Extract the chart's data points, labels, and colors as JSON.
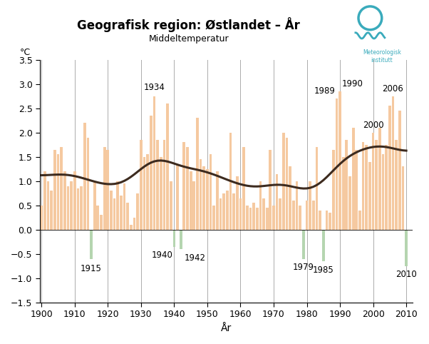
{
  "title": "Geografisk region: Østlandet – År",
  "subtitle": "Middeltemperatur",
  "xlabel": "År",
  "ylabel": "°C",
  "ylim": [
    -1.5,
    3.5
  ],
  "xlim": [
    1899.5,
    2012
  ],
  "yticks": [
    -1.5,
    -1.0,
    -0.5,
    0.0,
    0.5,
    1.0,
    1.5,
    2.0,
    2.5,
    3.0,
    3.5
  ],
  "xticks": [
    1900,
    1910,
    1920,
    1930,
    1940,
    1950,
    1960,
    1970,
    1980,
    1990,
    2000,
    2010
  ],
  "years": [
    1900,
    1901,
    1902,
    1903,
    1904,
    1905,
    1906,
    1907,
    1908,
    1909,
    1910,
    1911,
    1912,
    1913,
    1914,
    1915,
    1916,
    1917,
    1918,
    1919,
    1920,
    1921,
    1922,
    1923,
    1924,
    1925,
    1926,
    1927,
    1928,
    1929,
    1930,
    1931,
    1932,
    1933,
    1934,
    1935,
    1936,
    1937,
    1938,
    1939,
    1940,
    1941,
    1942,
    1943,
    1944,
    1945,
    1946,
    1947,
    1948,
    1949,
    1950,
    1951,
    1952,
    1953,
    1954,
    1955,
    1956,
    1957,
    1958,
    1959,
    1960,
    1961,
    1962,
    1963,
    1964,
    1965,
    1966,
    1967,
    1968,
    1969,
    1970,
    1971,
    1972,
    1973,
    1974,
    1975,
    1976,
    1977,
    1978,
    1979,
    1980,
    1981,
    1982,
    1983,
    1984,
    1985,
    1986,
    1987,
    1988,
    1989,
    1990,
    1991,
    1992,
    1993,
    1994,
    1995,
    1996,
    1997,
    1998,
    1999,
    2000,
    2001,
    2002,
    2003,
    2004,
    2005,
    2006,
    2007,
    2008,
    2009,
    2010
  ],
  "values": [
    0.5,
    1.2,
    1.0,
    0.8,
    1.65,
    1.55,
    1.7,
    1.2,
    0.9,
    1.0,
    1.2,
    0.85,
    0.9,
    2.2,
    1.9,
    -0.6,
    1.0,
    0.5,
    0.3,
    1.7,
    1.65,
    0.8,
    0.65,
    1.0,
    0.7,
    0.95,
    0.55,
    0.1,
    0.25,
    0.75,
    1.85,
    1.5,
    1.55,
    2.35,
    2.75,
    1.85,
    1.5,
    1.85,
    2.6,
    1.0,
    -0.35,
    1.35,
    -0.4,
    1.8,
    1.7,
    1.2,
    1.0,
    2.3,
    1.45,
    1.3,
    1.25,
    1.55,
    0.5,
    1.2,
    0.65,
    0.75,
    0.8,
    2.0,
    0.75,
    1.1,
    0.65,
    1.7,
    0.5,
    0.45,
    0.55,
    0.45,
    1.0,
    0.65,
    0.45,
    1.65,
    0.5,
    1.15,
    0.65,
    2.0,
    1.9,
    1.3,
    0.6,
    1.0,
    0.5,
    -0.6,
    0.6,
    1.0,
    0.6,
    1.7,
    0.4,
    -0.65,
    0.4,
    0.35,
    1.65,
    2.7,
    2.85,
    1.5,
    1.85,
    1.1,
    2.1,
    1.65,
    0.4,
    1.8,
    1.75,
    1.4,
    2.0,
    1.85,
    2.1,
    1.55,
    1.75,
    2.55,
    2.75,
    1.85,
    2.45,
    1.3,
    -0.75
  ],
  "bar_color_pos": "#f5c9a0",
  "bar_color_neg": "#b5d5b0",
  "line_color": "#3d2b1f",
  "bg_color": "#ffffff",
  "grid_color": "#888888",
  "annotations_top": [
    {
      "year": 1934,
      "label": "1934"
    },
    {
      "year": 1989,
      "label": "1989"
    },
    {
      "year": 1990,
      "label": "1990"
    },
    {
      "year": 2000,
      "label": "2000"
    },
    {
      "year": 2006,
      "label": "2006"
    }
  ],
  "annotations_bottom": [
    {
      "year": 1915,
      "label": "1915"
    },
    {
      "year": 1942,
      "label": "1942"
    },
    {
      "year": 1940,
      "label": "1940"
    },
    {
      "year": 1979,
      "label": "1979"
    },
    {
      "year": 1985,
      "label": "1985"
    },
    {
      "year": 2010,
      "label": "2010"
    }
  ]
}
